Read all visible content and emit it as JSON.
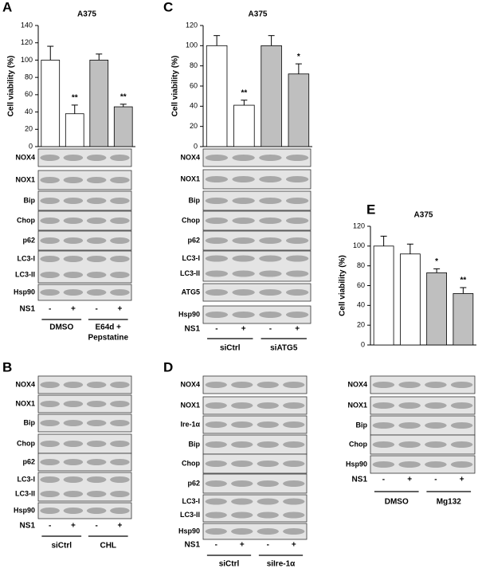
{
  "chart_data": [
    {
      "panel": "A",
      "type": "bar",
      "title": "A375",
      "y_label": "Cell viability (%)",
      "values": [
        100,
        38,
        100,
        46
      ],
      "errors": [
        16,
        10,
        7,
        3
      ],
      "colors": [
        "#ffffff",
        "#ffffff",
        "#bfbfbf",
        "#bfbfbf"
      ],
      "ylim": [
        0,
        140
      ],
      "yticks": [
        0,
        20,
        40,
        60,
        80,
        100,
        120,
        140
      ],
      "annotations": [
        {
          "text": "**",
          "bar": 1
        },
        {
          "text": "**",
          "bar": 3
        }
      ]
    },
    {
      "panel": "C",
      "type": "bar",
      "title": "A375",
      "y_label": "Cell viability (%)",
      "values": [
        100,
        41,
        100,
        72
      ],
      "errors": [
        10,
        5,
        10,
        10
      ],
      "colors": [
        "#ffffff",
        "#ffffff",
        "#bfbfbf",
        "#bfbfbf"
      ],
      "ylim": [
        0,
        120
      ],
      "yticks": [
        0,
        20,
        40,
        60,
        80,
        100,
        120
      ],
      "annotations": [
        {
          "text": "**",
          "bar": 1
        },
        {
          "text": "*",
          "bar": 3
        }
      ]
    },
    {
      "panel": "E",
      "type": "bar",
      "title": "A375",
      "y_label": "Cell viability (%)",
      "values": [
        100,
        92,
        73,
        52
      ],
      "errors": [
        10,
        10,
        4,
        6
      ],
      "colors": [
        "#ffffff",
        "#ffffff",
        "#bfbfbf",
        "#bfbfbf"
      ],
      "ylim": [
        0,
        120
      ],
      "yticks": [
        0,
        20,
        40,
        60,
        80,
        100,
        120
      ],
      "annotations": [
        {
          "text": "*",
          "bar": 2
        },
        {
          "text": "**",
          "bar": 3
        }
      ]
    }
  ],
  "blots": [
    {
      "boxes": [
        [
          "NOX4"
        ],
        [
          "NOX1"
        ],
        [
          "Bip"
        ],
        [
          "Chop"
        ],
        [
          "p62"
        ],
        [
          "LC3-I",
          "LC3-II"
        ],
        [
          "Hsp90"
        ]
      ],
      "treatment": "NS1",
      "signs": [
        "-",
        "+",
        "-",
        "+"
      ],
      "groups": [
        [
          "DMSO"
        ],
        [
          "E64d +",
          "Pepstatine"
        ]
      ]
    },
    {
      "panel": "B",
      "boxes": [
        [
          "NOX4"
        ],
        [
          "NOX1"
        ],
        [
          "Bip"
        ],
        [
          "Chop"
        ],
        [
          "p62"
        ],
        [
          "LC3-I",
          "LC3-II"
        ],
        [
          "Hsp90"
        ]
      ],
      "treatment": "NS1",
      "signs": [
        "-",
        "+",
        "-",
        "+"
      ],
      "groups": [
        [
          "siCtrl"
        ],
        [
          "CHL"
        ]
      ]
    },
    {
      "boxes": [
        [
          "NOX4"
        ],
        [
          "NOX1"
        ],
        [
          "Bip"
        ],
        [
          "Chop"
        ],
        [
          "p62"
        ],
        [
          "LC3-I",
          "LC3-II"
        ],
        [
          "ATG5"
        ],
        [
          "Hsp90"
        ]
      ],
      "treatment": "NS1",
      "signs": [
        "-",
        "+",
        "-",
        "+"
      ],
      "groups": [
        [
          "siCtrl"
        ],
        [
          "siATG5"
        ]
      ]
    },
    {
      "panel": "D",
      "boxes": [
        [
          "NOX4"
        ],
        [
          "NOX1"
        ],
        [
          "Ire-1α"
        ],
        [
          "Bip"
        ],
        [
          "Chop"
        ],
        [
          "p62"
        ],
        [
          "LC3-I",
          "LC3-II"
        ],
        [
          "Hsp90"
        ]
      ],
      "treatment": "NS1",
      "signs": [
        "-",
        "+",
        "-",
        "+"
      ],
      "groups": [
        [
          "siCtrl"
        ],
        [
          "siIre-1α"
        ]
      ]
    },
    {
      "boxes": [
        [
          "NOX4"
        ],
        [
          "NOX1"
        ],
        [
          "Bip"
        ],
        [
          "Chop"
        ],
        [
          "Hsp90"
        ]
      ],
      "treatment": "NS1",
      "signs": [
        "-",
        "+",
        "-",
        "+"
      ],
      "groups": [
        [
          "DMSO"
        ],
        [
          "Mg132"
        ]
      ]
    }
  ]
}
